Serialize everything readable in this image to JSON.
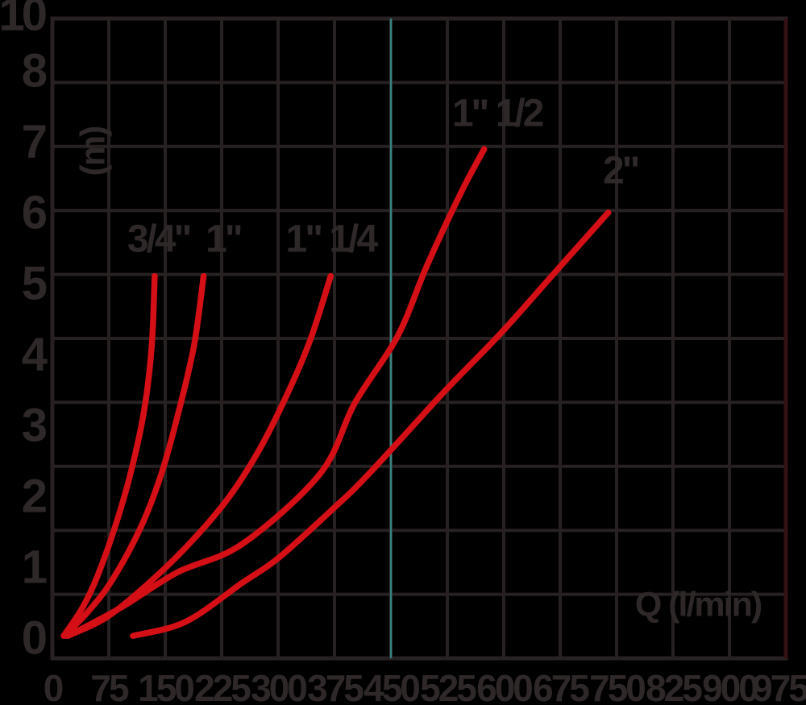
{
  "chart_data": {
    "type": "line",
    "title": "",
    "xlabel": "Q (l/min)",
    "ylabel": "(m)",
    "x_ticks": [
      "0",
      "75",
      "150",
      "225",
      "300",
      "375",
      "450",
      "525",
      "600",
      "675",
      "750",
      "825",
      "900",
      "975"
    ],
    "y_tick_labels": [
      "10",
      "8",
      "7",
      "6",
      "5",
      "4",
      "3",
      "2",
      "1",
      "0"
    ],
    "x_range": [
      0,
      975
    ],
    "y_range": [
      0,
      10
    ],
    "grid": true,
    "legend_position": "inline-labels",
    "reference_line": {
      "x": 450,
      "color": "#378280"
    },
    "series": [
      {
        "name": "3/4\"",
        "label": "3/4\"",
        "label_anchor": {
          "q": 141,
          "m": 5.72
        },
        "points": [
          [
            15,
            0.1
          ],
          [
            40,
            0.5
          ],
          [
            60,
            0.95
          ],
          [
            85,
            1.7
          ],
          [
            105,
            2.45
          ],
          [
            122,
            3.3
          ],
          [
            132,
            4.2
          ],
          [
            136,
            5.2
          ]
        ]
      },
      {
        "name": "1\"",
        "label": "1\"",
        "label_anchor": {
          "q": 227,
          "m": 5.72
        },
        "points": [
          [
            16,
            0.1
          ],
          [
            48,
            0.45
          ],
          [
            80,
            0.9
          ],
          [
            118,
            1.65
          ],
          [
            145,
            2.4
          ],
          [
            166,
            3.2
          ],
          [
            188,
            4.2
          ],
          [
            201,
            5.2
          ]
        ]
      },
      {
        "name": "1\" 1/4",
        "label": "1\" 1/4",
        "label_anchor": {
          "q": 370,
          "m": 5.72
        },
        "points": [
          [
            20,
            0.1
          ],
          [
            70,
            0.35
          ],
          [
            123,
            0.8
          ],
          [
            177,
            1.35
          ],
          [
            230,
            2.0
          ],
          [
            273,
            2.7
          ],
          [
            311,
            3.5
          ],
          [
            343,
            4.3
          ],
          [
            370,
            5.2
          ]
        ]
      },
      {
        "name": "1\" 1/2",
        "label": "1\" 1/2",
        "label_anchor": {
          "q": 591,
          "m": 7.5
        },
        "points": [
          [
            21,
            0.1
          ],
          [
            91,
            0.5
          ],
          [
            166,
            1.0
          ],
          [
            252,
            1.4
          ],
          [
            356,
            2.4
          ],
          [
            402,
            3.4
          ],
          [
            459,
            4.35
          ],
          [
            498,
            5.35
          ],
          [
            544,
            6.4
          ],
          [
            574,
            7.0
          ]
        ]
      },
      {
        "name": "2\"",
        "label": "2\"",
        "label_anchor": {
          "q": 755,
          "m": 6.69
        },
        "points": [
          [
            107,
            0.1
          ],
          [
            177,
            0.3
          ],
          [
            252,
            0.85
          ],
          [
            300,
            1.2
          ],
          [
            373,
            1.9
          ],
          [
            421,
            2.4
          ],
          [
            520,
            3.55
          ],
          [
            597,
            4.4
          ],
          [
            672,
            5.3
          ],
          [
            739,
            6.1
          ]
        ]
      }
    ],
    "colors": {
      "curve": "#d40f16",
      "reference_line": "#378280",
      "grid": "#272122",
      "right_border": "#331114",
      "text": "#2e2829",
      "background": "#000000"
    }
  }
}
